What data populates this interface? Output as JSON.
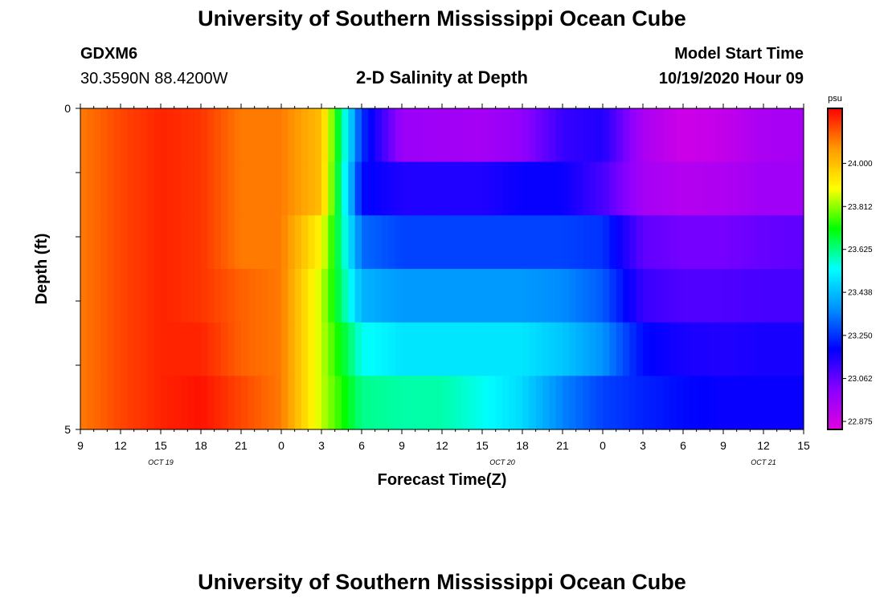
{
  "page": {
    "title": "University of Southern Mississippi Ocean Cube",
    "station": "GDXM6",
    "coords": "30.3590N 88.4200W",
    "chart_title": "2-D Salinity at Depth",
    "model_start_label": "Model Start Time",
    "model_start_value": "10/19/2020 Hour 09",
    "footer_title": "University of Southern Mississippi Ocean Cube"
  },
  "chart_data": {
    "type": "heatmap",
    "title": "2-D Salinity at Depth",
    "xlabel": "Forecast Time(Z)",
    "ylabel": "Depth (ft)",
    "x_tick_labels": [
      "9",
      "12",
      "15",
      "18",
      "21",
      "0",
      "3",
      "6",
      "9",
      "12",
      "15",
      "18",
      "21",
      "0",
      "3",
      "6",
      "9",
      "12",
      "15"
    ],
    "date_labels": [
      "OCT 19",
      "OCT 20",
      "OCT 21"
    ],
    "y_tick_labels": [
      "0",
      "5"
    ],
    "ylim": [
      0,
      5
    ],
    "colorbar": {
      "unit": "psu",
      "tick_labels": [
        "24.000",
        "23.812",
        "23.625",
        "23.438",
        "23.250",
        "23.062",
        "22.875"
      ],
      "tick_values": [
        24.0,
        23.812,
        23.625,
        23.438,
        23.25,
        23.062,
        22.875
      ],
      "range": [
        22.84,
        24.24
      ]
    },
    "hours_since_start": [
      0,
      3,
      6,
      9,
      12,
      15,
      18,
      21,
      24,
      27,
      30,
      33,
      36,
      39,
      42,
      45,
      48,
      51,
      54
    ],
    "rows": [
      {
        "depth": "0-1",
        "values": [
          24.1,
          24.16,
          24.2,
          24.18,
          24.1,
          24.1,
          24.0,
          23.25,
          22.98,
          22.97,
          22.96,
          23.0,
          23.12,
          23.15,
          22.95,
          22.88,
          22.9,
          22.95,
          22.96
        ]
      },
      {
        "depth": "1-2",
        "values": [
          24.1,
          24.16,
          24.2,
          24.18,
          24.1,
          24.1,
          24.0,
          23.2,
          23.15,
          23.15,
          23.15,
          23.18,
          23.18,
          23.1,
          22.96,
          22.93,
          22.94,
          22.97,
          22.97
        ]
      },
      {
        "depth": "2-3",
        "values": [
          24.1,
          24.16,
          24.2,
          24.18,
          24.1,
          24.1,
          23.9,
          23.32,
          23.27,
          23.27,
          23.27,
          23.27,
          23.27,
          23.25,
          23.07,
          23.04,
          23.04,
          23.06,
          23.07
        ]
      },
      {
        "depth": "3-4",
        "values": [
          24.1,
          24.16,
          24.2,
          24.18,
          24.13,
          24.1,
          23.85,
          23.42,
          23.38,
          23.38,
          23.38,
          23.38,
          23.36,
          23.3,
          23.12,
          23.09,
          23.09,
          23.1,
          23.1
        ]
      },
      {
        "depth": "4-5",
        "values": [
          24.1,
          24.16,
          24.2,
          24.2,
          24.13,
          24.1,
          23.85,
          23.55,
          23.5,
          23.5,
          23.5,
          23.5,
          23.45,
          23.37,
          23.2,
          23.16,
          23.15,
          23.16,
          23.16
        ]
      },
      {
        "depth": "5",
        "values": [
          24.1,
          24.16,
          24.2,
          24.22,
          24.16,
          24.1,
          23.85,
          23.62,
          23.6,
          23.6,
          23.55,
          23.48,
          23.35,
          23.27,
          23.23,
          23.2,
          23.18,
          23.18,
          23.18
        ]
      }
    ]
  },
  "colors": {
    "scale": [
      "#e000e0",
      "#8a00ff",
      "#0000ff",
      "#0090ff",
      "#00ffff",
      "#00ff00",
      "#ffff00",
      "#ff9900",
      "#ff0000"
    ]
  }
}
